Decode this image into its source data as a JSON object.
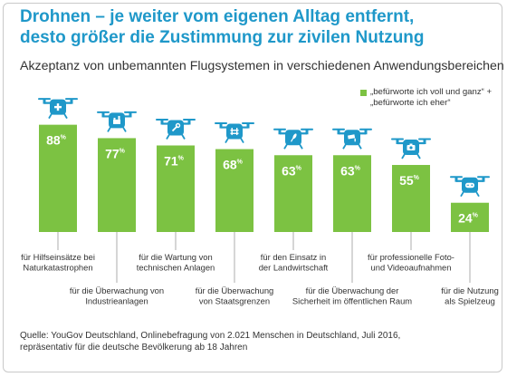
{
  "title_lines": [
    "Drohnen – je weiter vom eigenen Alltag entfernt,",
    "desto größer die Zustimmung zur zivilen Nutzung"
  ],
  "subtitle": "Akzeptanz von unbemannten Flugsystemen in verschiedenen Anwendungsbereichen",
  "legend_lines": [
    "„befürworte ich voll und ganz“ +",
    "„befürworte ich eher“"
  ],
  "source_lines": [
    "Quelle: YouGov Deutschland, Onlinebefragung von 2.021 Menschen in Deutschland, Juli 2016,",
    "repräsentativ für die deutsche Bevölkerung ab 18 Jahren"
  ],
  "colors": {
    "title": "#1f98c9",
    "bar": "#7cc242",
    "drone": "#1f98c9",
    "label_line": "#999999"
  },
  "chart_data": {
    "type": "bar",
    "unit": "%",
    "ylim": [
      0,
      100
    ],
    "categories": [
      "für Hilfseinsätze bei Naturkatastrophen",
      "für die Überwachung von Industrieanlagen",
      "für die Wartung von technischen Anlagen",
      "für die Überwachung von Staatsgrenzen",
      "für den Einsatz in der Landwirtschaft",
      "für die Überwachung der Sicherheit im öffentlichen Raum",
      "für professionelle Foto- und Videoaufnahmen",
      "für die Nutzung als Spielzeug"
    ],
    "category_lines": [
      [
        "für Hilfseinsätze bei",
        "Naturkatastrophen"
      ],
      [
        "für die Überwachung von",
        "Industrieanlagen"
      ],
      [
        "für die Wartung von",
        "technischen Anlagen"
      ],
      [
        "für die Überwachung",
        "von Staatsgrenzen"
      ],
      [
        "für den Einsatz in",
        "der Landwirtschaft"
      ],
      [
        "für die Überwachung der",
        "Sicherheit im öffentlichen Raum"
      ],
      [
        "für professionelle Foto-",
        "und Videoaufnahmen"
      ],
      [
        "für die Nutzung",
        "als Spielzeug"
      ]
    ],
    "values": [
      88,
      77,
      71,
      68,
      63,
      63,
      55,
      24
    ],
    "value_labels": [
      "88",
      "77",
      "71",
      "68",
      "63",
      "63",
      "55",
      "24"
    ],
    "icons": [
      "first-aid-icon",
      "factory-icon",
      "wrench-icon",
      "border-fence-icon",
      "wheat-icon",
      "cctv-camera-icon",
      "photo-camera-icon",
      "gamepad-icon"
    ]
  }
}
